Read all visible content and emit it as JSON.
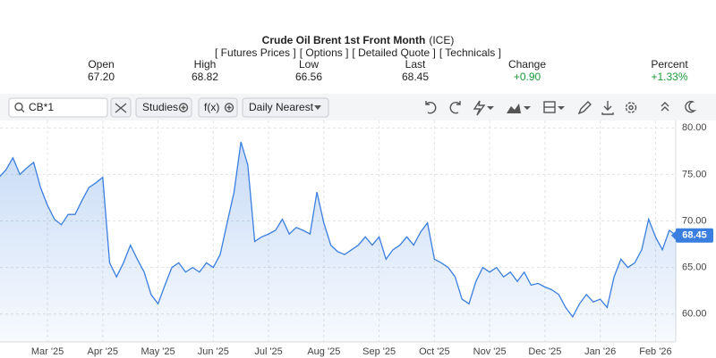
{
  "header": {
    "title": "Crude Oil Brent 1st Front Month",
    "exchange": "(ICE)",
    "links": [
      "[ Futures Prices ]",
      "[ Options ]",
      "[ Detailed Quote ]",
      "[ Technicals ]"
    ]
  },
  "quote": {
    "labels": [
      "Open",
      "High",
      "Low",
      "Last",
      "Change",
      "Percent"
    ],
    "values": [
      "67.20",
      "68.82",
      "66.56",
      "68.45",
      "+0.90",
      "+1.33%"
    ]
  },
  "toolbar": {
    "symbol": "CB*1",
    "studies": "Studies",
    "function": "f(x)",
    "period": "Daily Nearest"
  },
  "chart_data": {
    "type": "line",
    "color": "#3a7fe0",
    "grid": true,
    "categories": [
      null,
      null,
      null,
      null,
      null,
      null,
      null,
      "Mar '25",
      null,
      null,
      null,
      null,
      null,
      null,
      null,
      "Apr '25",
      null,
      null,
      null,
      null,
      null,
      null,
      null,
      "May '25",
      null,
      null,
      null,
      null,
      null,
      null,
      null,
      "Jun '25",
      null,
      null,
      null,
      null,
      null,
      null,
      null,
      "Jul '25",
      null,
      null,
      null,
      null,
      null,
      null,
      null,
      "Aug '25",
      null,
      null,
      null,
      null,
      null,
      null,
      null,
      "Sep '25",
      null,
      null,
      null,
      null,
      null,
      null,
      null,
      "Oct '25",
      null,
      null,
      null,
      null,
      null,
      null,
      null,
      "Nov '25",
      null,
      null,
      null,
      null,
      null,
      null,
      null,
      "Dec '25",
      null,
      null,
      null,
      null,
      null,
      null,
      null,
      "Jan '26",
      null,
      null,
      null,
      null,
      null,
      null,
      null,
      "Feb '26",
      null,
      null,
      null
    ],
    "values": [
      74.7,
      75.5,
      76.8,
      75.0,
      75.7,
      76.3,
      73.6,
      71.7,
      70.2,
      69.6,
      70.7,
      70.7,
      72.2,
      73.6,
      74.1,
      74.7,
      65.5,
      64.0,
      65.5,
      67.4,
      65.9,
      64.5,
      62.1,
      61.1,
      63.1,
      65.0,
      65.5,
      64.5,
      65.0,
      64.5,
      65.5,
      65.0,
      66.4,
      69.8,
      73.1,
      78.5,
      76.0,
      67.8,
      68.3,
      68.6,
      69.0,
      70.2,
      68.6,
      69.3,
      69.0,
      68.6,
      73.1,
      69.8,
      67.4,
      66.7,
      66.4,
      66.9,
      67.4,
      68.3,
      67.4,
      68.3,
      65.9,
      66.9,
      67.4,
      68.3,
      67.4,
      68.8,
      69.8,
      65.9,
      65.5,
      65.0,
      64.0,
      61.6,
      61.1,
      63.5,
      65.0,
      64.5,
      65.0,
      64.0,
      64.5,
      63.5,
      64.5,
      63.1,
      63.3,
      62.9,
      62.6,
      62.1,
      60.7,
      59.7,
      61.1,
      62.1,
      61.3,
      61.6,
      60.7,
      64.0,
      65.9,
      65.0,
      65.5,
      66.9,
      70.2,
      68.3,
      66.9,
      69.0,
      68.45
    ],
    "ylim": [
      57,
      80.8
    ],
    "yticks": [
      {
        "value": 60,
        "label": "60.00"
      },
      {
        "value": 65,
        "label": "65.00"
      },
      {
        "value": 70,
        "label": "70.00"
      },
      {
        "value": 75,
        "label": "75.00"
      },
      {
        "value": 80,
        "label": "80.00"
      }
    ]
  }
}
